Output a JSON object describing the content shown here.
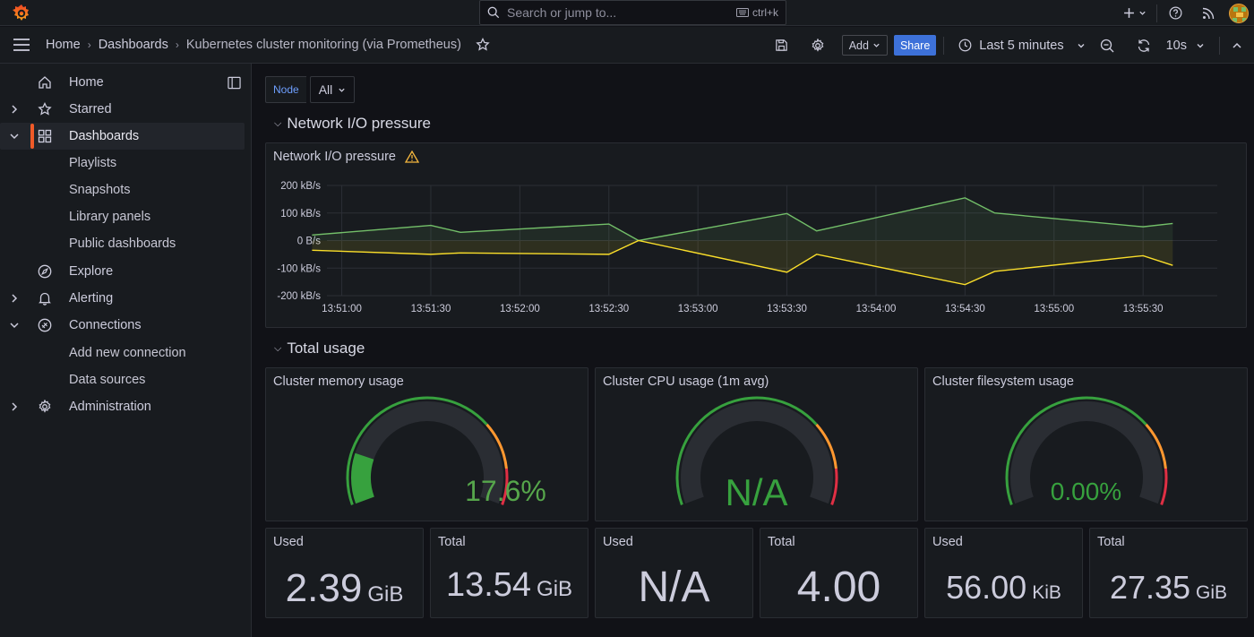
{
  "topbar": {
    "search_placeholder": "Search or jump to...",
    "search_shortcut": "ctrl+k"
  },
  "breadcrumb": {
    "home": "Home",
    "dashboards": "Dashboards",
    "current": "Kubernetes cluster monitoring (via Prometheus)"
  },
  "toolbar": {
    "add_label": "Add",
    "share_label": "Share",
    "time_range": "Last 5 minutes",
    "refresh_interval": "10s"
  },
  "sidebar": {
    "items": [
      {
        "label": "Home",
        "icon": "home-icon"
      },
      {
        "label": "Starred",
        "icon": "star-icon"
      },
      {
        "label": "Dashboards",
        "icon": "apps-icon"
      },
      {
        "label": "Playlists"
      },
      {
        "label": "Snapshots"
      },
      {
        "label": "Library panels"
      },
      {
        "label": "Public dashboards"
      },
      {
        "label": "Explore",
        "icon": "compass-icon"
      },
      {
        "label": "Alerting",
        "icon": "bell-icon"
      },
      {
        "label": "Connections",
        "icon": "plug-icon"
      },
      {
        "label": "Add new connection"
      },
      {
        "label": "Data sources"
      },
      {
        "label": "Administration",
        "icon": "gear-icon"
      }
    ]
  },
  "variables": {
    "node_label": "Node",
    "node_value": "All"
  },
  "rows": {
    "network": "Network I/O pressure",
    "total": "Total usage"
  },
  "network_panel": {
    "title": "Network I/O pressure"
  },
  "chart_data": {
    "type": "line",
    "x": [
      "13:50:50",
      "13:51:30",
      "13:51:40",
      "13:52:30",
      "13:52:40",
      "13:53:30",
      "13:53:40",
      "13:54:30",
      "13:54:40",
      "13:55:30",
      "13:55:40"
    ],
    "x_ticks": [
      "13:51:00",
      "13:51:30",
      "13:52:00",
      "13:52:30",
      "13:53:00",
      "13:53:30",
      "13:54:00",
      "13:54:30",
      "13:55:00",
      "13:55:30"
    ],
    "y_ticks": [
      "200 kB/s",
      "100 kB/s",
      "0 B/s",
      "-100 kB/s",
      "-200 kB/s"
    ],
    "ylim": [
      -200,
      200
    ],
    "y_unit": "kB/s",
    "series": [
      {
        "color": "#73bf69",
        "values": [
          20,
          55,
          30,
          60,
          0,
          98,
          35,
          155,
          100,
          50,
          62
        ]
      },
      {
        "color": "#fade2a",
        "values": [
          -35,
          -50,
          -45,
          -50,
          0,
          -115,
          -50,
          -160,
          -112,
          -55,
          -90
        ]
      }
    ]
  },
  "gauges": [
    {
      "title": "Cluster memory usage",
      "value": "17.6%",
      "fraction": 0.176
    },
    {
      "title": "Cluster CPU usage (1m avg)",
      "value": "N/A",
      "fraction": 0
    },
    {
      "title": "Cluster filesystem usage",
      "value": "0.00%",
      "fraction": 0
    }
  ],
  "stats": [
    {
      "title": "Used",
      "value": "2.39",
      "unit": "GiB"
    },
    {
      "title": "Total",
      "value": "13.54",
      "unit": "GiB"
    },
    {
      "title": "Used",
      "value": "N/A",
      "unit": ""
    },
    {
      "title": "Total",
      "value": "4.00",
      "unit": ""
    },
    {
      "title": "Used",
      "value": "56.00",
      "unit": "KiB"
    },
    {
      "title": "Total",
      "value": "27.35",
      "unit": "GiB"
    }
  ],
  "colors": {
    "accent_orange": "#f05a28",
    "gauge_green": "#37a13e",
    "gauge_text_green": "#56a64b",
    "share_blue": "#3d71d9",
    "series_green": "#73bf69",
    "series_yellow": "#fade2a"
  }
}
